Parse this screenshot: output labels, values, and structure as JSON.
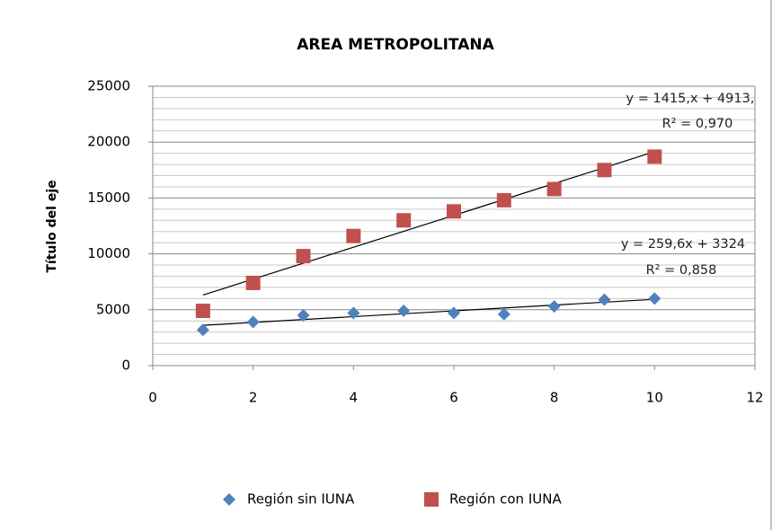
{
  "chart_data": {
    "type": "scatter",
    "title": "AREA METROPOLITANA",
    "y_label": "Título del eje",
    "x": [
      1,
      2,
      3,
      4,
      5,
      6,
      7,
      8,
      9,
      10
    ],
    "series": [
      {
        "name": "Región sin IUNA",
        "color": "#4f81bd",
        "marker": "diamond",
        "values": [
          3200,
          3900,
          4500,
          4700,
          4900,
          4700,
          4600,
          5300,
          5900,
          6000
        ]
      },
      {
        "name": "Región con IUNA",
        "color": "#c0504d",
        "marker": "square",
        "values": [
          4900,
          7400,
          9800,
          11600,
          13000,
          13800,
          14800,
          15800,
          17500,
          18700
        ]
      }
    ],
    "trendline": "linear",
    "annotations": [
      "y = 1415,x + 4913,",
      "R² = 0,970",
      "y = 259,6x + 3324",
      "R² = 0,858"
    ],
    "xlim": [
      0,
      12
    ],
    "xticks": [
      0,
      2,
      4,
      6,
      8,
      10,
      12
    ],
    "ylim": [
      0,
      25000
    ],
    "yticks": [
      0,
      5000,
      10000,
      15000,
      20000,
      25000
    ],
    "yminorticks": [
      1000,
      2000,
      3000,
      4000,
      6000,
      7000,
      8000,
      9000,
      11000,
      12000,
      13000,
      14000,
      16000,
      17000,
      18000,
      19000,
      21000,
      22000,
      23000,
      24000
    ],
    "grid": true,
    "legend": "bottom"
  }
}
